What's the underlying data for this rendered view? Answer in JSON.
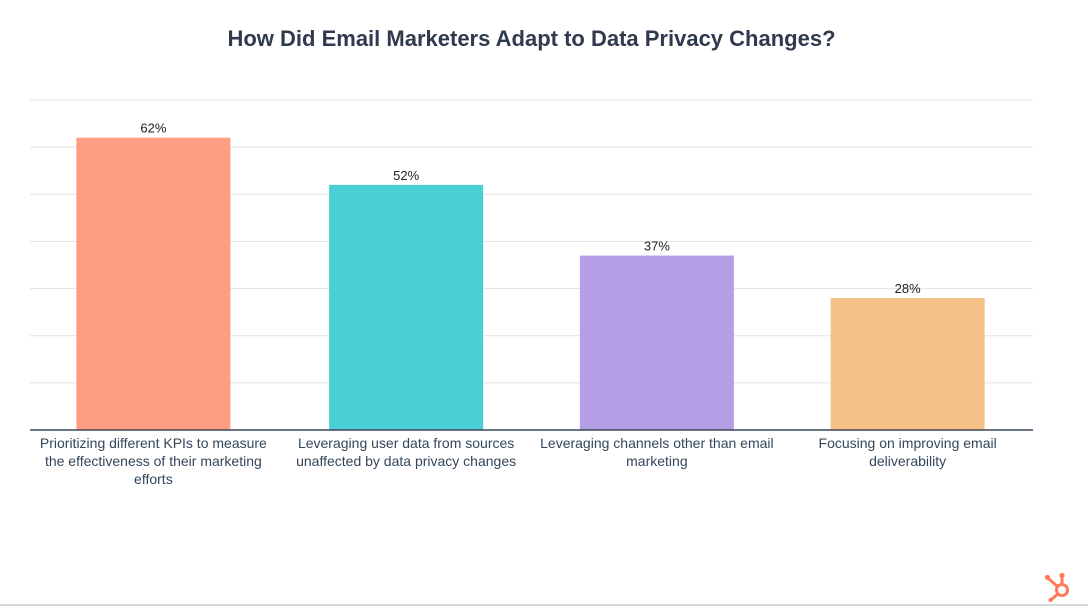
{
  "chart_data": {
    "type": "bar",
    "title": "How Did Email Marketers Adapt to Data Privacy Changes?",
    "categories": [
      "Prioritizing different KPIs to measure the effectiveness of their marketing efforts",
      "Leveraging user data from sources unaffected by data privacy changes",
      "Leveraging channels other than email marketing",
      "Focusing on improving email deliverability"
    ],
    "values": [
      62,
      52,
      37,
      28
    ],
    "value_labels": [
      "62%",
      "52%",
      "37%",
      "28%"
    ],
    "colors": [
      "#ff9d82",
      "#4acfd6",
      "#b59fe6",
      "#f5c187"
    ],
    "xlabel": "",
    "ylabel": "",
    "ylim": [
      0,
      70
    ],
    "grid": true,
    "legend": "none"
  },
  "brand": {
    "logo_icon": "hubspot-sprocket-icon",
    "color": "#ff7a59"
  }
}
